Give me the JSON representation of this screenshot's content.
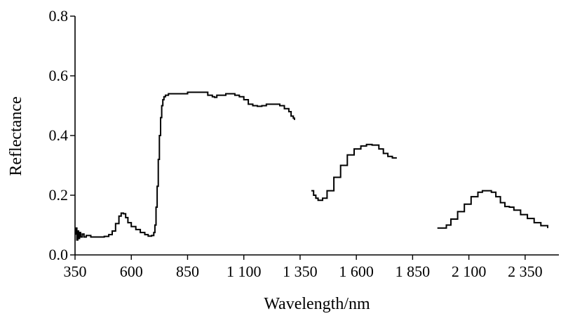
{
  "chart_data": {
    "type": "line",
    "title": "",
    "xlabel": "Wavelength/nm",
    "ylabel": "Reflectance",
    "xlim": [
      350,
      2500
    ],
    "ylim": [
      0,
      0.8
    ],
    "x_ticks": [
      350,
      600,
      850,
      1100,
      1350,
      1600,
      1850,
      2100,
      2350
    ],
    "x_tick_labels": [
      "350",
      "600",
      "850",
      "1 100",
      "1 350",
      "1 600",
      "1 850",
      "2 100",
      "2 350"
    ],
    "y_ticks": [
      0,
      0.2,
      0.4,
      0.6,
      0.8
    ],
    "y_tick_labels": [
      "0.0",
      "0.2",
      "0.4",
      "0.6",
      "0.8"
    ],
    "grid": false,
    "legend": "none",
    "line_color": "#000000",
    "series": [
      {
        "segments": [
          [
            [
              350,
              0.07
            ],
            [
              355,
              0.09
            ],
            [
              358,
              0.05
            ],
            [
              362,
              0.08
            ],
            [
              366,
              0.055
            ],
            [
              370,
              0.075
            ],
            [
              375,
              0.06
            ],
            [
              382,
              0.07
            ],
            [
              390,
              0.06
            ],
            [
              400,
              0.065
            ],
            [
              420,
              0.06
            ],
            [
              450,
              0.06
            ],
            [
              480,
              0.062
            ],
            [
              500,
              0.068
            ],
            [
              515,
              0.08
            ],
            [
              530,
              0.105
            ],
            [
              545,
              0.13
            ],
            [
              555,
              0.14
            ],
            [
              565,
              0.138
            ],
            [
              575,
              0.125
            ],
            [
              585,
              0.108
            ],
            [
              600,
              0.095
            ],
            [
              620,
              0.085
            ],
            [
              640,
              0.075
            ],
            [
              660,
              0.068
            ],
            [
              675,
              0.063
            ],
            [
              690,
              0.065
            ],
            [
              700,
              0.075
            ],
            [
              705,
              0.1
            ],
            [
              710,
              0.16
            ],
            [
              715,
              0.23
            ],
            [
              720,
              0.32
            ],
            [
              725,
              0.4
            ],
            [
              730,
              0.46
            ],
            [
              735,
              0.5
            ],
            [
              740,
              0.52
            ],
            [
              745,
              0.53
            ],
            [
              752,
              0.535
            ],
            [
              765,
              0.54
            ],
            [
              800,
              0.54
            ],
            [
              850,
              0.545
            ],
            [
              900,
              0.545
            ],
            [
              925,
              0.545
            ],
            [
              940,
              0.535
            ],
            [
              960,
              0.53
            ],
            [
              970,
              0.528
            ],
            [
              980,
              0.535
            ],
            [
              1000,
              0.535
            ],
            [
              1020,
              0.54
            ],
            [
              1040,
              0.54
            ],
            [
              1060,
              0.535
            ],
            [
              1080,
              0.53
            ],
            [
              1100,
              0.52
            ],
            [
              1120,
              0.505
            ],
            [
              1140,
              0.5
            ],
            [
              1160,
              0.498
            ],
            [
              1180,
              0.5
            ],
            [
              1200,
              0.505
            ],
            [
              1220,
              0.505
            ],
            [
              1240,
              0.505
            ],
            [
              1260,
              0.5
            ],
            [
              1280,
              0.49
            ],
            [
              1300,
              0.48
            ],
            [
              1310,
              0.465
            ],
            [
              1320,
              0.458
            ],
            [
              1325,
              0.452
            ]
          ],
          [
            [
              1400,
              0.215
            ],
            [
              1410,
              0.2
            ],
            [
              1420,
              0.19
            ],
            [
              1430,
              0.183
            ],
            [
              1440,
              0.183
            ],
            [
              1450,
              0.19
            ],
            [
              1470,
              0.215
            ],
            [
              1500,
              0.26
            ],
            [
              1530,
              0.3
            ],
            [
              1560,
              0.335
            ],
            [
              1590,
              0.355
            ],
            [
              1620,
              0.365
            ],
            [
              1645,
              0.37
            ],
            [
              1670,
              0.368
            ],
            [
              1700,
              0.355
            ],
            [
              1720,
              0.34
            ],
            [
              1740,
              0.33
            ],
            [
              1760,
              0.325
            ],
            [
              1780,
              0.325
            ]
          ],
          [
            [
              1960,
              0.09
            ],
            [
              1980,
              0.09
            ],
            [
              2000,
              0.1
            ],
            [
              2020,
              0.12
            ],
            [
              2050,
              0.145
            ],
            [
              2080,
              0.17
            ],
            [
              2110,
              0.195
            ],
            [
              2140,
              0.21
            ],
            [
              2160,
              0.215
            ],
            [
              2180,
              0.215
            ],
            [
              2200,
              0.21
            ],
            [
              2220,
              0.195
            ],
            [
              2240,
              0.175
            ],
            [
              2260,
              0.162
            ],
            [
              2280,
              0.16
            ],
            [
              2300,
              0.15
            ],
            [
              2330,
              0.135
            ],
            [
              2360,
              0.122
            ],
            [
              2390,
              0.108
            ],
            [
              2420,
              0.098
            ],
            [
              2450,
              0.09
            ]
          ]
        ]
      }
    ]
  }
}
